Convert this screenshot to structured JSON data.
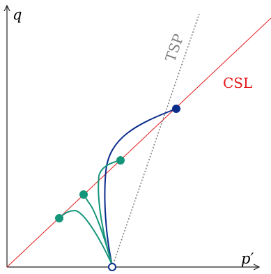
{
  "axes": {
    "x_label": "p′",
    "y_label": "q"
  },
  "lines": {
    "csl": {
      "label": "CSL",
      "color": "#e31a1c"
    },
    "tsp": {
      "label": "TSP",
      "color": "#808080"
    }
  },
  "paths": {
    "outer_color": "#0b2d8a",
    "inner_color": "#15957a"
  },
  "start_point": {
    "label": ""
  }
}
